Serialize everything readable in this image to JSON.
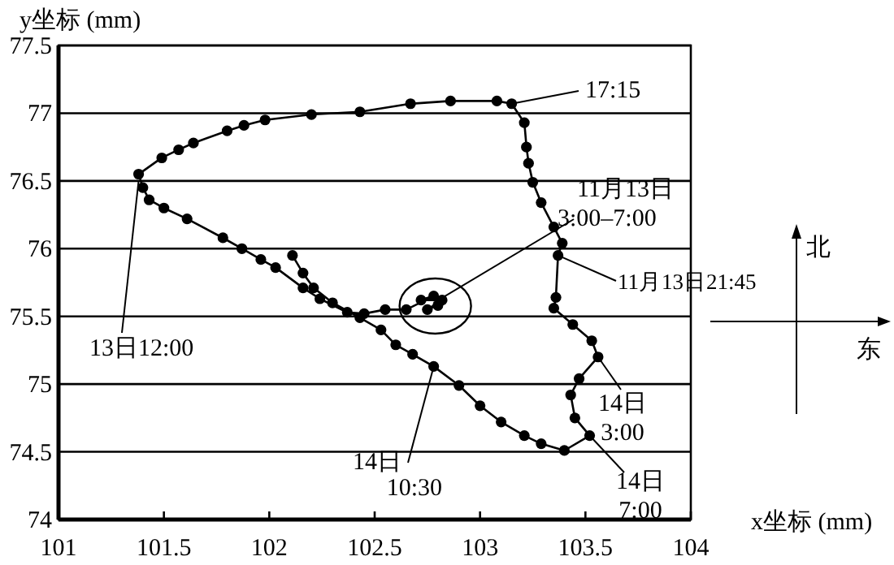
{
  "chart_data": {
    "type": "line",
    "xlabel": "x坐标 (mm)",
    "ylabel": "y坐标 (mm)",
    "xlim": [
      101,
      104
    ],
    "ylim": [
      74,
      77.5
    ],
    "xticks": [
      101,
      101.5,
      102,
      102.5,
      103,
      103.5,
      104
    ],
    "yticks": [
      74,
      74.5,
      75,
      75.5,
      76,
      76.5,
      77,
      77.5
    ],
    "grid": "y",
    "marker": "circle",
    "line_style": "solid",
    "series": [
      {
        "color": "#000000",
        "x": [
          102.8,
          102.75,
          102.82,
          102.72,
          102.78,
          102.65,
          102.55,
          102.45,
          102.37,
          102.24,
          102.16,
          102.03,
          101.96,
          101.87,
          101.78,
          101.61,
          101.5,
          101.43,
          101.4,
          101.38,
          101.49,
          101.57,
          101.64,
          101.8,
          101.88,
          101.98,
          102.2,
          102.43,
          102.67,
          102.86,
          103.08,
          103.15,
          103.21,
          103.22,
          103.23,
          103.25,
          103.29,
          103.35,
          103.39,
          103.37,
          103.36,
          103.35,
          103.44,
          103.53,
          103.56,
          103.47,
          103.43,
          103.45,
          103.52,
          103.4,
          103.29,
          103.21,
          103.1,
          103.0,
          102.9,
          102.78,
          102.68,
          102.6,
          102.53,
          102.43,
          102.3,
          102.21,
          102.16,
          102.11
        ],
        "values": [
          75.58,
          75.55,
          75.62,
          75.62,
          75.65,
          75.55,
          75.55,
          75.52,
          75.53,
          75.63,
          75.71,
          75.86,
          75.92,
          76.0,
          76.08,
          76.22,
          76.3,
          76.36,
          76.45,
          76.55,
          76.67,
          76.73,
          76.78,
          76.87,
          76.91,
          76.95,
          76.99,
          77.01,
          77.07,
          77.09,
          77.09,
          77.07,
          76.93,
          76.75,
          76.63,
          76.49,
          76.34,
          76.16,
          76.04,
          75.95,
          75.64,
          75.56,
          75.44,
          75.32,
          75.2,
          75.04,
          74.92,
          74.75,
          74.62,
          74.51,
          74.56,
          74.62,
          74.72,
          74.84,
          74.99,
          75.13,
          75.22,
          75.29,
          75.4,
          75.49,
          75.6,
          75.71,
          75.82,
          75.95
        ]
      }
    ],
    "annotations": [
      {
        "text": "17:15",
        "x": 103.15,
        "y": 77.07
      },
      {
        "text": "11月13日 3:00–7:00",
        "x": 102.78,
        "y": 75.6
      },
      {
        "text": "11月13日21:45",
        "x": 103.37,
        "y": 75.95
      },
      {
        "text": "13日12:00",
        "x": 101.38,
        "y": 76.5
      },
      {
        "text": "14日 10:30",
        "x": 102.78,
        "y": 75.13
      },
      {
        "text": "14日 3:00",
        "x": 103.56,
        "y": 75.2
      },
      {
        "text": "14日 7:00",
        "x": 103.52,
        "y": 74.62
      },
      "北",
      "东"
    ]
  }
}
